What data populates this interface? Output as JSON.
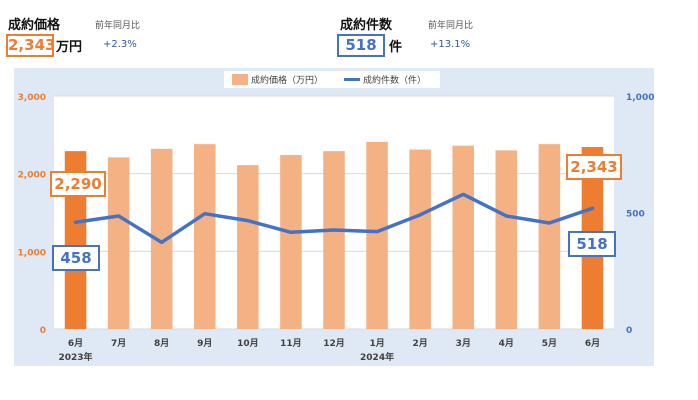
{
  "kpi": [
    {
      "title": "成約価格",
      "sub": "前年同月比",
      "value": "2,343",
      "unit": "万円",
      "yoy": "+2.3%",
      "color": "#ed7d31"
    },
    {
      "title": "成約件数",
      "sub": "前年同月比",
      "value": "518",
      "unit": "件",
      "yoy": "+13.1%",
      "color": "#4472c4"
    }
  ],
  "chart_data": {
    "type": "bar",
    "categories": [
      "6月",
      "7月",
      "8月",
      "9月",
      "10月",
      "11月",
      "12月",
      "1月",
      "2月",
      "3月",
      "4月",
      "5月",
      "6月"
    ],
    "year_labels": [
      {
        "index": 0,
        "text": "2023年"
      },
      {
        "index": 7,
        "text": "2024年"
      }
    ],
    "series": [
      {
        "name": "成約価格（万円）",
        "type": "bar",
        "axis": "left",
        "color": "#f4b183",
        "highlight_color": "#ed7d31",
        "values": [
          2290,
          2210,
          2320,
          2380,
          2110,
          2240,
          2290,
          2410,
          2310,
          2360,
          2300,
          2380,
          2343
        ]
      },
      {
        "name": "成約件数（件）",
        "type": "line",
        "axis": "right",
        "color": "#4472c4",
        "values": [
          458,
          485,
          372,
          495,
          465,
          415,
          425,
          418,
          490,
          578,
          485,
          455,
          518
        ]
      }
    ],
    "y_left": {
      "min": 0,
      "max": 3000,
      "ticks": [
        "0",
        "1,000",
        "2,000",
        "3,000"
      ],
      "color": "#ed7d31"
    },
    "y_right": {
      "min": 0,
      "max": 1000,
      "ticks": [
        "0",
        "500",
        "1,000"
      ],
      "color": "#4472c4"
    },
    "callouts": [
      {
        "series": 0,
        "index": 0,
        "text": "2,290",
        "color": "#ed7d31"
      },
      {
        "series": 1,
        "index": 0,
        "text": "458",
        "color": "#4472c4"
      },
      {
        "series": 0,
        "index": 12,
        "text": "2,343",
        "color": "#ed7d31"
      },
      {
        "series": 1,
        "index": 12,
        "text": "518",
        "color": "#4472c4"
      }
    ],
    "legend_position": "top",
    "grid": true
  }
}
